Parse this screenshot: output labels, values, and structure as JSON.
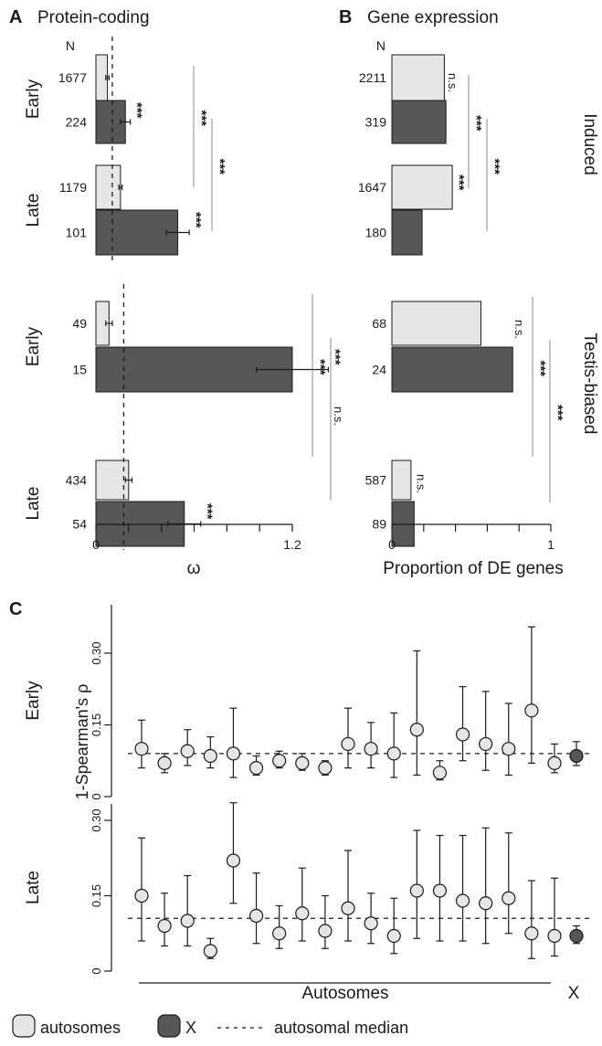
{
  "colors": {
    "autosome_fill": "#e6e6e6",
    "x_fill": "#575757",
    "stroke": "#1a1a1a",
    "line_gray": "#888888"
  },
  "legend": {
    "autosomes": "autosomes",
    "x": "X",
    "median": "autosomal median"
  },
  "panels": {
    "A": {
      "letter": "A",
      "title": "Protein-coding",
      "n_header": "N"
    },
    "B": {
      "letter": "B",
      "title": "Gene expression",
      "n_header": "N"
    },
    "C": {
      "letter": "C"
    }
  },
  "chart_data": [
    {
      "panel": "A",
      "type": "bar",
      "orientation": "horizontal",
      "xlabel": "ω",
      "xlim": [
        0,
        1.2
      ],
      "xticks": [
        0,
        1.2
      ],
      "xtick_labels": [
        "0",
        "1.2"
      ],
      "median_line": [
        0.1,
        0.17
      ],
      "groups": [
        {
          "section": "Induced",
          "stage": "Early",
          "bars": [
            {
              "type": "autosomes",
              "n": "1677",
              "value": 0.07,
              "err": 0.01
            },
            {
              "type": "X",
              "n": "224",
              "value": 0.18,
              "err": 0.03,
              "sig": "***"
            }
          ]
        },
        {
          "section": "Induced",
          "stage": "Late",
          "bars": [
            {
              "type": "autosomes",
              "n": "1179",
              "value": 0.15,
              "err": 0.01
            },
            {
              "type": "X",
              "n": "101",
              "value": 0.5,
              "err": 0.07,
              "sig": "***"
            }
          ]
        },
        {
          "section": "Testis-biased",
          "stage": "Early",
          "bars": [
            {
              "type": "autosomes",
              "n": "49",
              "value": 0.08,
              "err": 0.02
            },
            {
              "type": "X",
              "n": "15",
              "value": 1.2,
              "err": 0.22,
              "sig": "***"
            }
          ]
        },
        {
          "section": "Testis-biased",
          "stage": "Late",
          "bars": [
            {
              "type": "autosomes",
              "n": "434",
              "value": 0.2,
              "err": 0.02
            },
            {
              "type": "X",
              "n": "54",
              "value": 0.54,
              "err": 0.1,
              "sig": "***"
            }
          ]
        }
      ],
      "comparisons": [
        {
          "section": "Induced",
          "label": "***"
        },
        {
          "section": "Induced",
          "label": "***"
        },
        {
          "section": "Testis-biased",
          "label": "***"
        },
        {
          "section": "Testis-biased",
          "label": "n.s."
        }
      ]
    },
    {
      "panel": "B",
      "type": "bar",
      "orientation": "horizontal",
      "xlabel": "Proportion of DE genes",
      "xlim": [
        0,
        1
      ],
      "xticks": [
        0,
        1
      ],
      "xtick_labels": [
        "0",
        "1"
      ],
      "facet_labels": [
        "Induced",
        "Testis-biased"
      ],
      "groups": [
        {
          "section": "Induced",
          "stage": "Early",
          "bars": [
            {
              "type": "autosomes",
              "n": "2211",
              "value": 0.33
            },
            {
              "type": "X",
              "n": "319",
              "value": 0.34,
              "sig": "n.s."
            }
          ]
        },
        {
          "section": "Induced",
          "stage": "Late",
          "bars": [
            {
              "type": "autosomes",
              "n": "1647",
              "value": 0.38,
              "sig": "***"
            },
            {
              "type": "X",
              "n": "180",
              "value": 0.19
            }
          ]
        },
        {
          "section": "Testis-biased",
          "stage": "Early",
          "bars": [
            {
              "type": "autosomes",
              "n": "68",
              "value": 0.56
            },
            {
              "type": "X",
              "n": "24",
              "value": 0.76,
              "sig": "n.s."
            }
          ]
        },
        {
          "section": "Testis-biased",
          "stage": "Late",
          "bars": [
            {
              "type": "autosomes",
              "n": "587",
              "value": 0.12
            },
            {
              "type": "X",
              "n": "89",
              "value": 0.14,
              "sig": "n.s."
            }
          ]
        }
      ],
      "comparisons": [
        {
          "section": "Induced",
          "label": "***"
        },
        {
          "section": "Induced",
          "label": "***"
        },
        {
          "section": "Testis-biased",
          "label": "***"
        },
        {
          "section": "Testis-biased",
          "label": "***"
        }
      ]
    },
    {
      "panel": "C",
      "type": "scatter",
      "ylabel": "1-Spearman's ρ",
      "ylim": [
        0,
        0.35
      ],
      "yticks": [
        0,
        0.15,
        0.3
      ],
      "ytick_labels": [
        "0",
        "0.15",
        "0.30"
      ],
      "xlabel_autosomes": "Autosomes",
      "xlabel_x": "X",
      "series": [
        {
          "name": "Early",
          "median": 0.09,
          "points": [
            {
              "type": "autosomes",
              "y": 0.1,
              "lo": 0.06,
              "hi": 0.16
            },
            {
              "type": "autosomes",
              "y": 0.07,
              "lo": 0.05,
              "hi": 0.09
            },
            {
              "type": "autosomes",
              "y": 0.095,
              "lo": 0.065,
              "hi": 0.14
            },
            {
              "type": "autosomes",
              "y": 0.085,
              "lo": 0.06,
              "hi": 0.125
            },
            {
              "type": "autosomes",
              "y": 0.09,
              "lo": 0.04,
              "hi": 0.185
            },
            {
              "type": "autosomes",
              "y": 0.06,
              "lo": 0.045,
              "hi": 0.085
            },
            {
              "type": "autosomes",
              "y": 0.075,
              "lo": 0.06,
              "hi": 0.095
            },
            {
              "type": "autosomes",
              "y": 0.07,
              "lo": 0.055,
              "hi": 0.09
            },
            {
              "type": "autosomes",
              "y": 0.06,
              "lo": 0.045,
              "hi": 0.075
            },
            {
              "type": "autosomes",
              "y": 0.11,
              "lo": 0.06,
              "hi": 0.185
            },
            {
              "type": "autosomes",
              "y": 0.1,
              "lo": 0.06,
              "hi": 0.155
            },
            {
              "type": "autosomes",
              "y": 0.09,
              "lo": 0.04,
              "hi": 0.175
            },
            {
              "type": "autosomes",
              "y": 0.14,
              "lo": 0.045,
              "hi": 0.305
            },
            {
              "type": "autosomes",
              "y": 0.05,
              "lo": 0.035,
              "hi": 0.075
            },
            {
              "type": "autosomes",
              "y": 0.13,
              "lo": 0.075,
              "hi": 0.23
            },
            {
              "type": "autosomes",
              "y": 0.11,
              "lo": 0.055,
              "hi": 0.22
            },
            {
              "type": "autosomes",
              "y": 0.1,
              "lo": 0.045,
              "hi": 0.195
            },
            {
              "type": "autosomes",
              "y": 0.18,
              "lo": 0.07,
              "hi": 0.355
            },
            {
              "type": "autosomes",
              "y": 0.07,
              "lo": 0.05,
              "hi": 0.11
            },
            {
              "type": "X",
              "y": 0.085,
              "lo": 0.065,
              "hi": 0.115
            }
          ]
        },
        {
          "name": "Late",
          "median": 0.105,
          "points": [
            {
              "type": "autosomes",
              "y": 0.15,
              "lo": 0.06,
              "hi": 0.265
            },
            {
              "type": "autosomes",
              "y": 0.09,
              "lo": 0.05,
              "hi": 0.155
            },
            {
              "type": "autosomes",
              "y": 0.1,
              "lo": 0.05,
              "hi": 0.19
            },
            {
              "type": "autosomes",
              "y": 0.04,
              "lo": 0.025,
              "hi": 0.065
            },
            {
              "type": "autosomes",
              "y": 0.22,
              "lo": 0.135,
              "hi": 0.335
            },
            {
              "type": "autosomes",
              "y": 0.11,
              "lo": 0.055,
              "hi": 0.195
            },
            {
              "type": "autosomes",
              "y": 0.075,
              "lo": 0.045,
              "hi": 0.13
            },
            {
              "type": "autosomes",
              "y": 0.115,
              "lo": 0.06,
              "hi": 0.205
            },
            {
              "type": "autosomes",
              "y": 0.08,
              "lo": 0.045,
              "hi": 0.15
            },
            {
              "type": "autosomes",
              "y": 0.125,
              "lo": 0.06,
              "hi": 0.24
            },
            {
              "type": "autosomes",
              "y": 0.095,
              "lo": 0.055,
              "hi": 0.155
            },
            {
              "type": "autosomes",
              "y": 0.07,
              "lo": 0.035,
              "hi": 0.145
            },
            {
              "type": "autosomes",
              "y": 0.16,
              "lo": 0.065,
              "hi": 0.28
            },
            {
              "type": "autosomes",
              "y": 0.16,
              "lo": 0.06,
              "hi": 0.27
            },
            {
              "type": "autosomes",
              "y": 0.14,
              "lo": 0.06,
              "hi": 0.27
            },
            {
              "type": "autosomes",
              "y": 0.135,
              "lo": 0.055,
              "hi": 0.285
            },
            {
              "type": "autosomes",
              "y": 0.145,
              "lo": 0.075,
              "hi": 0.275
            },
            {
              "type": "autosomes",
              "y": 0.075,
              "lo": 0.025,
              "hi": 0.18
            },
            {
              "type": "autosomes",
              "y": 0.07,
              "lo": 0.03,
              "hi": 0.185
            },
            {
              "type": "X",
              "y": 0.07,
              "lo": 0.055,
              "hi": 0.09
            }
          ]
        }
      ]
    }
  ]
}
